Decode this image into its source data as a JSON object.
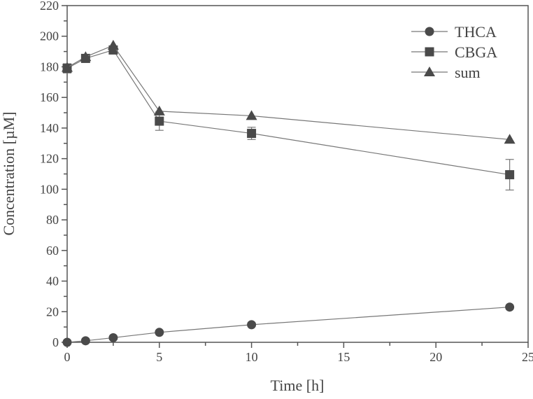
{
  "chart_data": {
    "type": "line",
    "title": "",
    "xlabel": "Time [h]",
    "ylabel": "Concentration [µM]",
    "xlim": [
      0,
      25
    ],
    "ylim": [
      0,
      220
    ],
    "xticks": [
      0,
      5,
      10,
      15,
      20,
      25
    ],
    "yticks": [
      0,
      20,
      40,
      60,
      80,
      100,
      120,
      140,
      160,
      180,
      200,
      220
    ],
    "grid": false,
    "legend_position": "top-right",
    "x": [
      0,
      1,
      2.5,
      5,
      10,
      24
    ],
    "series": [
      {
        "name": "THCA",
        "marker": "circle",
        "values": [
          0,
          1,
          3,
          6.5,
          11.5,
          23
        ],
        "errors": [
          0,
          0,
          0,
          0,
          0,
          0
        ]
      },
      {
        "name": "CBGA",
        "marker": "square",
        "values": [
          179,
          185.5,
          191,
          144.5,
          136.5,
          109.5
        ],
        "errors": [
          3,
          1.5,
          1.5,
          6,
          4,
          10
        ]
      },
      {
        "name": "sum",
        "marker": "triangle",
        "values": [
          179.5,
          186.5,
          194,
          151,
          148,
          132.5
        ],
        "errors": [
          0,
          0,
          0,
          0,
          0,
          0
        ]
      }
    ],
    "colors": {
      "marker": "#4a4a4a",
      "line": "#777777",
      "axis": "#555555"
    }
  }
}
